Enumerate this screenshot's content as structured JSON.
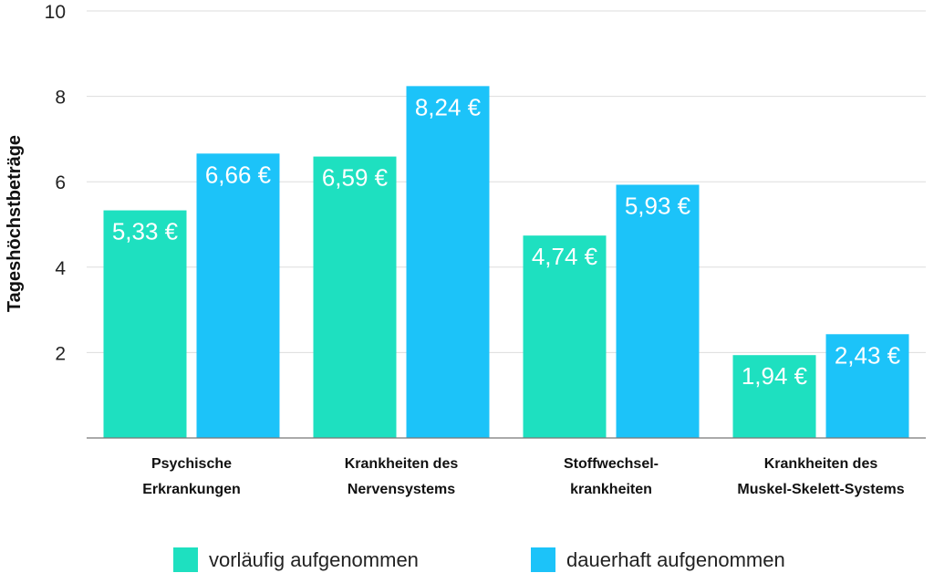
{
  "chart_data": {
    "type": "bar",
    "title": "",
    "xlabel": "",
    "ylabel": "Tageshöchstbeträge",
    "ylim": [
      0,
      10
    ],
    "yticks": [
      2,
      4,
      6,
      8,
      10
    ],
    "grid": true,
    "legend_position": "bottom",
    "categories": [
      [
        "Psychische",
        "Erkrankungen"
      ],
      [
        "Krankheiten des",
        "Nervensystems"
      ],
      [
        "Stoffwechsel-",
        "krankheiten"
      ],
      [
        "Krankheiten des",
        "Muskel-Skelett-Systems"
      ]
    ],
    "series": [
      {
        "name": "vorläufig aufgenommen",
        "color": "#1ee0c0",
        "values": [
          5.33,
          6.59,
          4.74,
          1.94
        ],
        "labels": [
          "5,33 €",
          "6,59 €",
          "4,74 €",
          "1,94 €"
        ]
      },
      {
        "name": "dauerhaft aufgenommen",
        "color": "#1cc3f9",
        "values": [
          6.66,
          8.24,
          5.93,
          2.43
        ],
        "labels": [
          "6,66 €",
          "8,24 €",
          "5,93 €",
          "2,43 €"
        ]
      }
    ]
  }
}
